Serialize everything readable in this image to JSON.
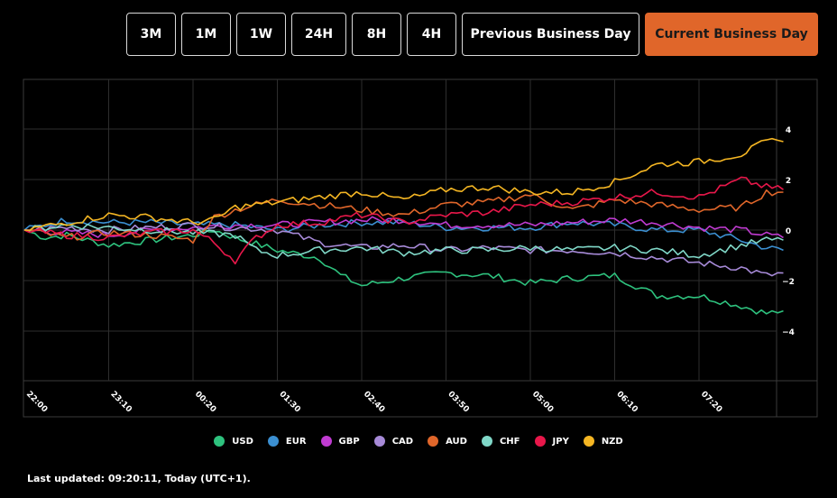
{
  "toolbar": {
    "buttons": [
      {
        "label": "3M",
        "active": false
      },
      {
        "label": "1M",
        "active": false
      },
      {
        "label": "1W",
        "active": false
      },
      {
        "label": "24H",
        "active": false
      },
      {
        "label": "8H",
        "active": false
      },
      {
        "label": "4H",
        "active": false
      },
      {
        "label": "Previous Business Day",
        "active": false
      },
      {
        "label": "Current Business Day",
        "active": true
      }
    ]
  },
  "footer": {
    "last_updated": "Last updated: 09:20:11, Today (UTC+1)."
  },
  "chart_data": {
    "type": "line",
    "title": "",
    "xlabel": "",
    "ylabel": "",
    "x_ticks": [
      "22:00",
      "23:10",
      "00:20",
      "01:30",
      "02:40",
      "03:50",
      "05:00",
      "06:10",
      "07:20"
    ],
    "y_ticks": [
      4,
      2,
      0,
      -2,
      -4
    ],
    "ylim": [
      -5.9,
      6.0
    ],
    "y_axis_side": "right",
    "grid": true,
    "legend_position": "bottom",
    "series": [
      {
        "name": "USD",
        "color": "#2ec27e",
        "points": [
          [
            0,
            0
          ],
          [
            0.25,
            -0.3
          ],
          [
            0.5,
            -0.2
          ],
          [
            1,
            -0.6
          ],
          [
            1.5,
            -0.4
          ],
          [
            2,
            -0.2
          ],
          [
            2.25,
            0
          ],
          [
            2.5,
            -0.3
          ],
          [
            3,
            -0.8
          ],
          [
            3.5,
            -1.1
          ],
          [
            3.75,
            -1.8
          ],
          [
            4,
            -2.2
          ],
          [
            4.5,
            -1.9
          ],
          [
            5,
            -1.7
          ],
          [
            5.5,
            -1.8
          ],
          [
            6,
            -2.1
          ],
          [
            6.5,
            -1.9
          ],
          [
            7,
            -1.8
          ],
          [
            7.5,
            -2.6
          ],
          [
            8,
            -2.6
          ],
          [
            8.5,
            -3.0
          ],
          [
            8.8,
            -3.3
          ],
          [
            9,
            -3.2
          ]
        ]
      },
      {
        "name": "EUR",
        "color": "#3b8fd1",
        "points": [
          [
            0,
            0
          ],
          [
            0.5,
            0.4
          ],
          [
            1,
            0.3
          ],
          [
            1.5,
            0.3
          ],
          [
            2,
            0.2
          ],
          [
            2.5,
            0.2
          ],
          [
            3,
            0
          ],
          [
            3.5,
            0.2
          ],
          [
            4,
            0.3
          ],
          [
            4.5,
            0.3
          ],
          [
            5,
            0.1
          ],
          [
            5.5,
            0.1
          ],
          [
            6,
            0.1
          ],
          [
            6.5,
            0.3
          ],
          [
            7,
            0.2
          ],
          [
            7.5,
            0
          ],
          [
            8,
            0
          ],
          [
            8.5,
            -0.4
          ],
          [
            8.8,
            -0.7
          ],
          [
            9,
            -0.8
          ]
        ]
      },
      {
        "name": "GBP",
        "color": "#c03bd1",
        "points": [
          [
            0,
            0
          ],
          [
            0.5,
            -0.1
          ],
          [
            1,
            -0.2
          ],
          [
            1.5,
            0
          ],
          [
            2,
            0.1
          ],
          [
            2.5,
            0.2
          ],
          [
            3,
            0.2
          ],
          [
            3.5,
            0.3
          ],
          [
            4,
            0.4
          ],
          [
            4.5,
            0.4
          ],
          [
            5,
            0.2
          ],
          [
            5.5,
            0.2
          ],
          [
            6,
            0.2
          ],
          [
            6.5,
            0.3
          ],
          [
            7,
            0.4
          ],
          [
            7.5,
            0.3
          ],
          [
            8,
            0.1
          ],
          [
            8.5,
            0
          ],
          [
            8.8,
            -0.2
          ],
          [
            9,
            -0.3
          ]
        ]
      },
      {
        "name": "CAD",
        "color": "#a78ad8",
        "points": [
          [
            0,
            0
          ],
          [
            0.5,
            0.1
          ],
          [
            1,
            0
          ],
          [
            1.5,
            0.1
          ],
          [
            2,
            0.2
          ],
          [
            2.5,
            0.1
          ],
          [
            3,
            0
          ],
          [
            3.5,
            -0.5
          ],
          [
            4,
            -0.7
          ],
          [
            4.5,
            -0.6
          ],
          [
            5,
            -0.8
          ],
          [
            5.5,
            -0.7
          ],
          [
            6,
            -0.8
          ],
          [
            6.5,
            -0.8
          ],
          [
            7,
            -0.9
          ],
          [
            7.5,
            -1.1
          ],
          [
            8,
            -1.3
          ],
          [
            8.5,
            -1.5
          ],
          [
            8.8,
            -1.8
          ],
          [
            9,
            -1.7
          ]
        ]
      },
      {
        "name": "AUD",
        "color": "#e0662a",
        "points": [
          [
            0,
            0
          ],
          [
            0.5,
            -0.3
          ],
          [
            1,
            -0.1
          ],
          [
            1.5,
            -0.2
          ],
          [
            2,
            -0.4
          ],
          [
            2.25,
            0.5
          ],
          [
            2.5,
            0.8
          ],
          [
            3,
            1.2
          ],
          [
            3.5,
            1.0
          ],
          [
            4,
            0.8
          ],
          [
            4.5,
            0.6
          ],
          [
            5,
            1.0
          ],
          [
            5.5,
            1.1
          ],
          [
            6,
            1.4
          ],
          [
            6.5,
            0.8
          ],
          [
            7,
            1.2
          ],
          [
            7.5,
            1.0
          ],
          [
            8,
            0.8
          ],
          [
            8.5,
            0.9
          ],
          [
            8.8,
            1.5
          ],
          [
            9,
            1.5
          ]
        ]
      },
      {
        "name": "CHF",
        "color": "#80d8c8",
        "points": [
          [
            0,
            0
          ],
          [
            0.5,
            0.2
          ],
          [
            1,
            0.1
          ],
          [
            1.5,
            0
          ],
          [
            2,
            -0.1
          ],
          [
            2.5,
            -0.2
          ],
          [
            2.75,
            -0.8
          ],
          [
            3,
            -1.0
          ],
          [
            3.5,
            -0.8
          ],
          [
            4,
            -0.7
          ],
          [
            4.5,
            -0.9
          ],
          [
            5,
            -0.8
          ],
          [
            5.5,
            -0.8
          ],
          [
            6,
            -0.7
          ],
          [
            6.5,
            -0.8
          ],
          [
            7,
            -0.7
          ],
          [
            7.5,
            -0.8
          ],
          [
            8,
            -1.0
          ],
          [
            8.5,
            -0.6
          ],
          [
            8.8,
            -0.4
          ],
          [
            9,
            -0.4
          ]
        ]
      },
      {
        "name": "JPY",
        "color": "#e8174a",
        "points": [
          [
            0,
            0
          ],
          [
            0.5,
            -0.2
          ],
          [
            1,
            -0.3
          ],
          [
            1.5,
            -0.1
          ],
          [
            2,
            0
          ],
          [
            2.25,
            -0.5
          ],
          [
            2.5,
            -1.2
          ],
          [
            2.75,
            -0.3
          ],
          [
            3,
            0.2
          ],
          [
            3.5,
            0.3
          ],
          [
            4,
            0.6
          ],
          [
            4.5,
            0.3
          ],
          [
            5,
            0.6
          ],
          [
            5.5,
            0.7
          ],
          [
            6,
            1.0
          ],
          [
            6.5,
            1.1
          ],
          [
            7,
            1.3
          ],
          [
            7.5,
            1.5
          ],
          [
            8,
            1.3
          ],
          [
            8.5,
            2.0
          ],
          [
            8.8,
            1.7
          ],
          [
            9,
            1.6
          ]
        ]
      },
      {
        "name": "NZD",
        "color": "#f5b623",
        "points": [
          [
            0,
            0
          ],
          [
            0.5,
            0.3
          ],
          [
            1,
            0.6
          ],
          [
            1.5,
            0.5
          ],
          [
            2,
            0.3
          ],
          [
            2.25,
            0.4
          ],
          [
            2.5,
            0.9
          ],
          [
            3,
            1.1
          ],
          [
            3.5,
            1.3
          ],
          [
            4,
            1.5
          ],
          [
            4.5,
            1.2
          ],
          [
            5,
            1.6
          ],
          [
            5.5,
            1.7
          ],
          [
            6,
            1.5
          ],
          [
            6.5,
            1.5
          ],
          [
            7,
            1.9
          ],
          [
            7.5,
            2.6
          ],
          [
            8,
            2.7
          ],
          [
            8.5,
            3.0
          ],
          [
            8.8,
            3.5
          ],
          [
            9,
            3.5
          ]
        ]
      }
    ]
  }
}
